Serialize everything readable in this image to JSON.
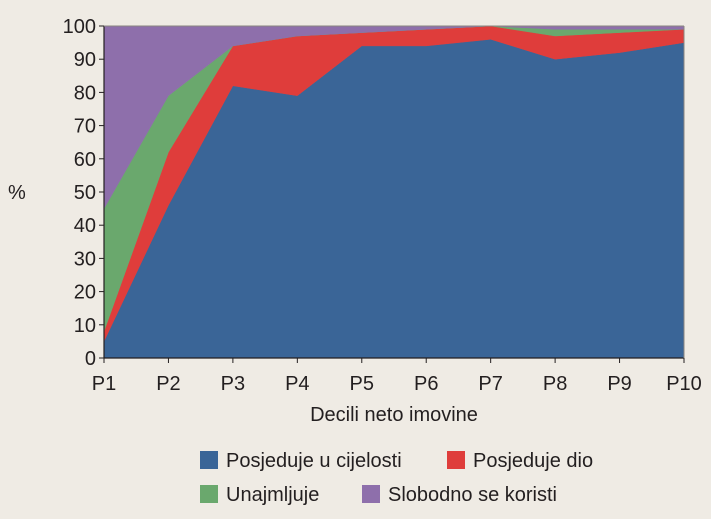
{
  "chart_data": {
    "type": "area",
    "stacked": true,
    "categories": [
      "P1",
      "P2",
      "P3",
      "P4",
      "P5",
      "P6",
      "P7",
      "P8",
      "P9",
      "P10"
    ],
    "ylabel": "%",
    "xlabel": "Decili neto imovine",
    "ylim": [
      0,
      100
    ],
    "yticks": [
      0,
      10,
      20,
      30,
      40,
      50,
      60,
      70,
      80,
      90,
      100
    ],
    "grid": false,
    "legend_position": "bottom",
    "series": [
      {
        "name": "Posjeduje u cijelosti",
        "color": "#3a6597",
        "values": [
          5,
          46,
          82,
          79,
          94,
          94,
          96,
          90,
          92,
          95
        ]
      },
      {
        "name": "Posjeduje dio",
        "color": "#df3d3b",
        "values": [
          3,
          16,
          12,
          18,
          4,
          5,
          4,
          7,
          6,
          4
        ]
      },
      {
        "name": "Unajmljuje",
        "color": "#6aa86d",
        "values": [
          37,
          17,
          0,
          0,
          0,
          0,
          0,
          2,
          1,
          0
        ]
      },
      {
        "name": "Slobodno se koristi",
        "color": "#8e6fab",
        "values": [
          55,
          21,
          6,
          3,
          2,
          1,
          0,
          1,
          1,
          1
        ]
      }
    ]
  }
}
